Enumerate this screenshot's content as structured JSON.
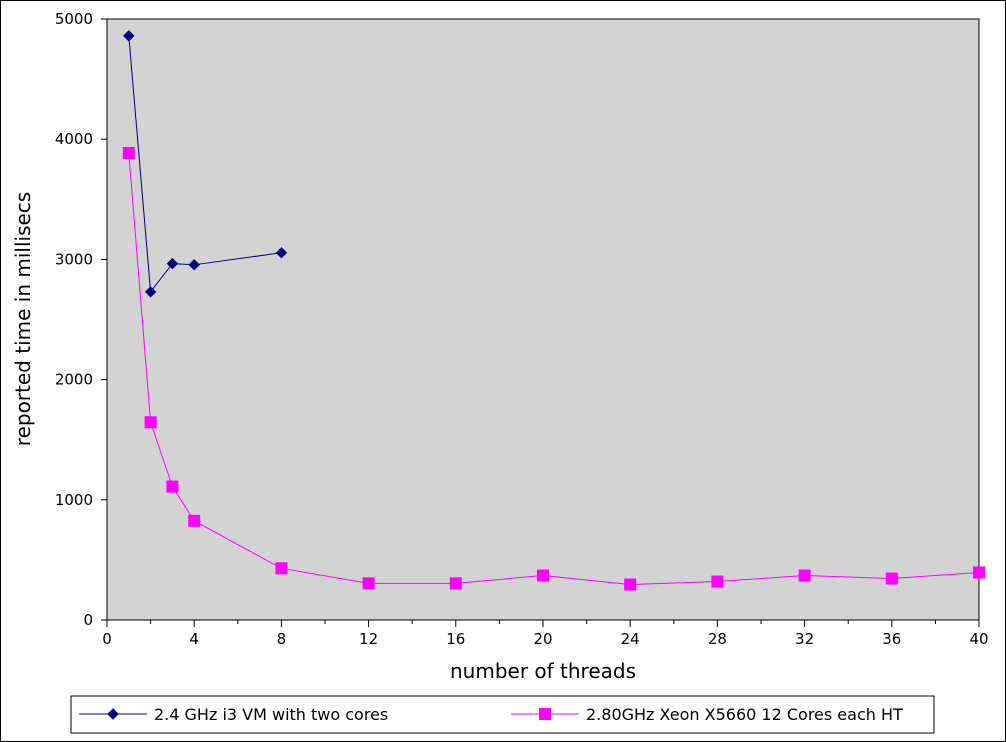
{
  "chart_data": {
    "type": "line",
    "xlabel": "number of threads",
    "ylabel": "reported time in millisecs",
    "xlim": [
      0,
      40
    ],
    "ylim": [
      0,
      5000
    ],
    "x_ticks": [
      0,
      4,
      8,
      12,
      16,
      20,
      24,
      28,
      32,
      36,
      40
    ],
    "x_minor_step": 2,
    "y_ticks": [
      0,
      1000,
      2000,
      3000,
      4000,
      5000
    ],
    "grid": false,
    "plot_background": "#d3d3d3",
    "legend_position": "bottom",
    "series": [
      {
        "name": "2.4 GHz i3 VM with two cores",
        "color": "#000080",
        "marker": "diamond",
        "points": [
          [
            1,
            4860
          ],
          [
            2,
            2730
          ],
          [
            3,
            2965
          ],
          [
            4,
            2955
          ],
          [
            8,
            3055
          ]
        ]
      },
      {
        "name": "2.80GHz Xeon X5660 12 Cores each HT",
        "color": "#ff00ff",
        "marker": "square",
        "points": [
          [
            1,
            3885
          ],
          [
            2,
            1645
          ],
          [
            3,
            1110
          ],
          [
            4,
            825
          ],
          [
            8,
            430
          ],
          [
            12,
            305
          ],
          [
            16,
            305
          ],
          [
            20,
            370
          ],
          [
            24,
            295
          ],
          [
            28,
            320
          ],
          [
            32,
            370
          ],
          [
            36,
            345
          ],
          [
            40,
            395
          ]
        ]
      }
    ]
  }
}
